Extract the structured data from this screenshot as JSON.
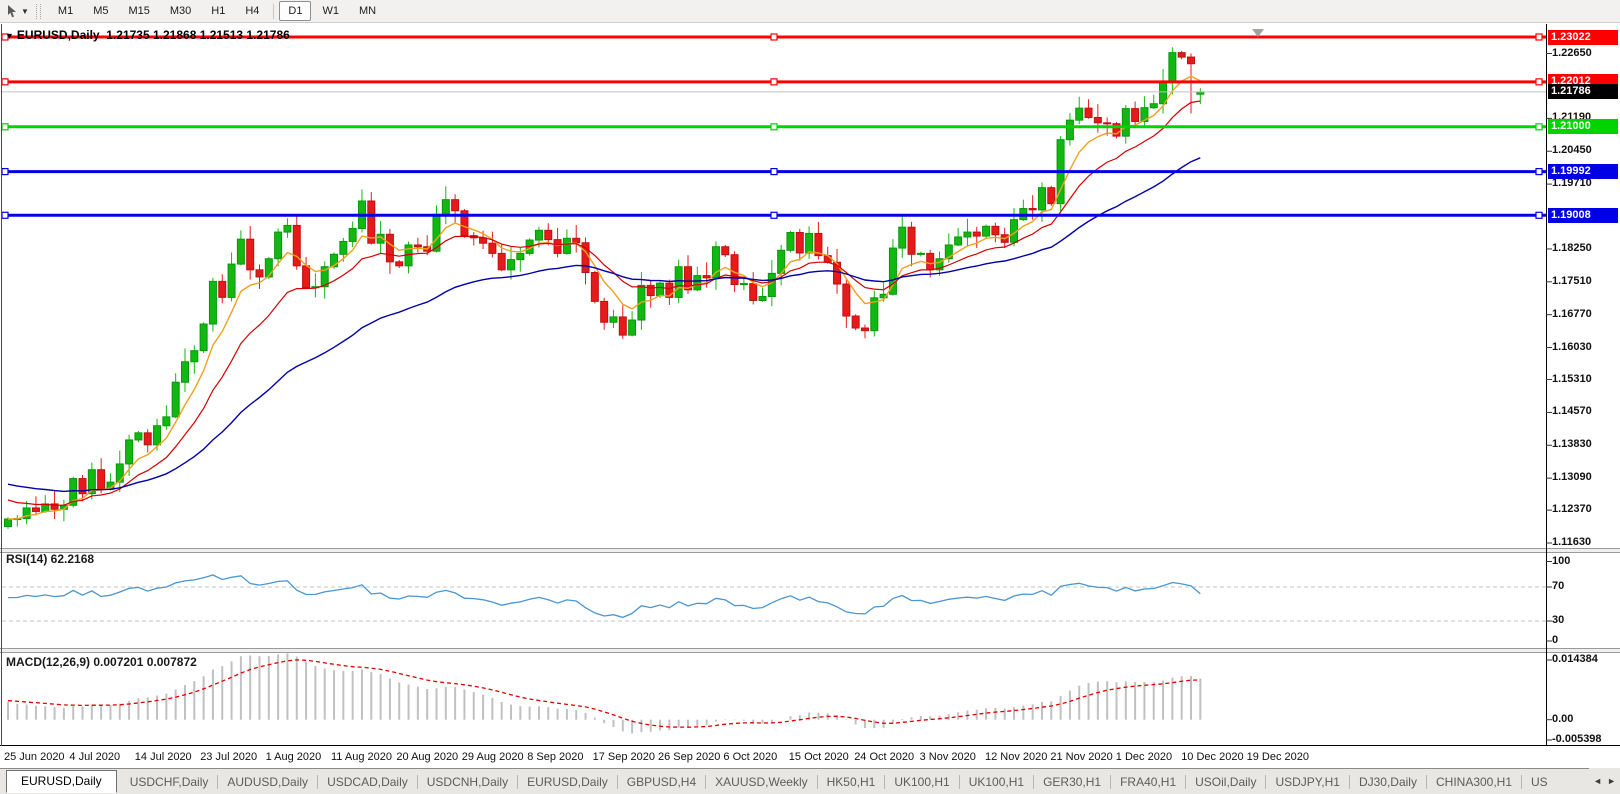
{
  "toolbar": {
    "timeframes": [
      "M1",
      "M5",
      "M15",
      "M30",
      "H1",
      "H4",
      "D1",
      "W1",
      "MN"
    ],
    "active_timeframe": "D1"
  },
  "chart": {
    "symbol_label": "EURUSD,Daily",
    "ohlc_label": "1.21735 1.21868 1.21513 1.21786",
    "colors": {
      "bull": "#12b812",
      "bull_stroke": "#089708",
      "bear": "#e61a1a",
      "bear_stroke": "#c01010",
      "ma_fast": "#f0a020",
      "ma_mid": "#d40000",
      "ma_slow": "#0000a8",
      "rsi_line": "#4996d1",
      "rsi_level": "#c4c4c4",
      "macd_hist": "#c0c0c0",
      "macd_signal": "#e00000",
      "current_price_line": "#c0c0c0",
      "current_price_badge": "#000000"
    },
    "hlines": [
      {
        "label": "1.23022",
        "value": 1.23022,
        "color": "#ff0000"
      },
      {
        "label": "1.22012",
        "value": 1.22012,
        "color": "#ff0000"
      },
      {
        "label": "1.21000",
        "value": 1.21,
        "color": "#00d400"
      },
      {
        "label": "1.19992",
        "value": 1.19992,
        "color": "#0000e6"
      },
      {
        "label": "1.19008",
        "value": 1.19008,
        "color": "#0000e6"
      }
    ],
    "current_price": {
      "label": "1.21786",
      "value": 1.21786
    },
    "price_ticks": [
      "1.22650",
      "1.21190",
      "1.20450",
      "1.19710",
      "1.18250",
      "1.17510",
      "1.16770",
      "1.16030",
      "1.15310",
      "1.14570",
      "1.13830",
      "1.13090",
      "1.12370",
      "1.11630"
    ],
    "rsi_ticks": [
      "100",
      "70",
      "30",
      "0"
    ],
    "macd_ticks": [
      "0.014384",
      "0.00",
      "-0.005398"
    ],
    "time_axis": [
      "25 Jun 2020",
      "4 Jul 2020",
      "14 Jul 2020",
      "23 Jul 2020",
      "1 Aug 2020",
      "11 Aug 2020",
      "20 Aug 2020",
      "29 Aug 2020",
      "8 Sep 2020",
      "17 Sep 2020",
      "26 Sep 2020",
      "6 Oct 2020",
      "15 Oct 2020",
      "24 Oct 2020",
      "3 Nov 2020",
      "12 Nov 2020",
      "21 Nov 2020",
      "1 Dec 2020",
      "10 Dec 2020",
      "19 Dec 2020"
    ]
  },
  "chart_data": {
    "type": "candlestick",
    "symbol": "EURUSD",
    "timeframe": "Daily",
    "first_open": 1.12,
    "closes": [
      1.1217,
      1.1218,
      1.1242,
      1.1234,
      1.1251,
      1.1239,
      1.1248,
      1.1308,
      1.1274,
      1.1328,
      1.1284,
      1.13,
      1.1341,
      1.1395,
      1.1411,
      1.1384,
      1.1427,
      1.1447,
      1.1525,
      1.1571,
      1.1596,
      1.1656,
      1.1752,
      1.1716,
      1.1791,
      1.1847,
      1.1778,
      1.1762,
      1.1803,
      1.1863,
      1.1878,
      1.1787,
      1.1738,
      1.174,
      1.1785,
      1.1813,
      1.1842,
      1.1871,
      1.1933,
      1.1838,
      1.1858,
      1.1796,
      1.1787,
      1.1834,
      1.183,
      1.182,
      1.1903,
      1.1936,
      1.1911,
      1.1855,
      1.185,
      1.1838,
      1.1815,
      1.1778,
      1.1801,
      1.1815,
      1.1845,
      1.1867,
      1.1846,
      1.1815,
      1.1849,
      1.1839,
      1.1772,
      1.1707,
      1.166,
      1.1672,
      1.1631,
      1.1665,
      1.1743,
      1.172,
      1.1748,
      1.1716,
      1.1785,
      1.1733,
      1.1765,
      1.176,
      1.183,
      1.1812,
      1.1745,
      1.1747,
      1.1709,
      1.1718,
      1.177,
      1.1822,
      1.1862,
      1.1816,
      1.186,
      1.181,
      1.1795,
      1.1746,
      1.1674,
      1.1647,
      1.1641,
      1.1715,
      1.1723,
      1.1827,
      1.1874,
      1.1813,
      1.1815,
      1.1778,
      1.1803,
      1.1834,
      1.1852,
      1.1863,
      1.1854,
      1.1876,
      1.1857,
      1.184,
      1.1891,
      1.1916,
      1.1913,
      1.1963,
      1.1927,
      1.2071,
      1.2115,
      1.2142,
      1.2121,
      1.2109,
      1.2107,
      1.2079,
      1.2141,
      1.2112,
      1.2143,
      1.2152,
      1.22,
      1.2267,
      1.2257,
      1.2242,
      1.21786
    ],
    "low_overrides": {
      "127": 1.213
    },
    "last_bar": {
      "open": 1.21735,
      "high": 1.21868,
      "low": 1.21513,
      "close": 1.21786
    },
    "price_range": {
      "top": 1.23022,
      "bottom": 1.1163
    },
    "indicators": {
      "rsi": {
        "label": "RSI(14) 62.2168",
        "period": 14,
        "value": 62.2168,
        "levels": [
          70,
          30
        ],
        "range": [
          0,
          100
        ]
      },
      "macd": {
        "label": "MACD(12,26,9) 0.007201 0.007872",
        "main": 0.007201,
        "signal": 0.007872,
        "range": [
          -0.005398,
          0.014384
        ]
      },
      "moving_averages": [
        {
          "name": "fast",
          "color": "#f0a020"
        },
        {
          "name": "medium",
          "color": "#d40000"
        },
        {
          "name": "slow",
          "color": "#0000a8"
        }
      ]
    }
  },
  "tabs": {
    "items": [
      {
        "label": "EURUSD,Daily",
        "active": true
      },
      {
        "label": "USDCHF,Daily",
        "active": false
      },
      {
        "label": "AUDUSD,Daily",
        "active": false
      },
      {
        "label": "USDCAD,Daily",
        "active": false
      },
      {
        "label": "USDCNH,Daily",
        "active": false
      },
      {
        "label": "EURUSD,Daily",
        "active": false
      },
      {
        "label": "GBPUSD,H4",
        "active": false
      },
      {
        "label": "XAUUSD,Weekly",
        "active": false
      },
      {
        "label": "HK50,H1",
        "active": false
      },
      {
        "label": "UK100,H1",
        "active": false
      },
      {
        "label": "UK100,H1",
        "active": false
      },
      {
        "label": "GER30,H1",
        "active": false
      },
      {
        "label": "FRA40,H1",
        "active": false
      },
      {
        "label": "USOil,Daily",
        "active": false
      },
      {
        "label": "USDJPY,H1",
        "active": false
      },
      {
        "label": "DJ30,Daily",
        "active": false
      },
      {
        "label": "CHINA300,H1",
        "active": false
      },
      {
        "label": "US",
        "active": false
      }
    ],
    "scroll_left": "◄",
    "scroll_right": "►"
  }
}
